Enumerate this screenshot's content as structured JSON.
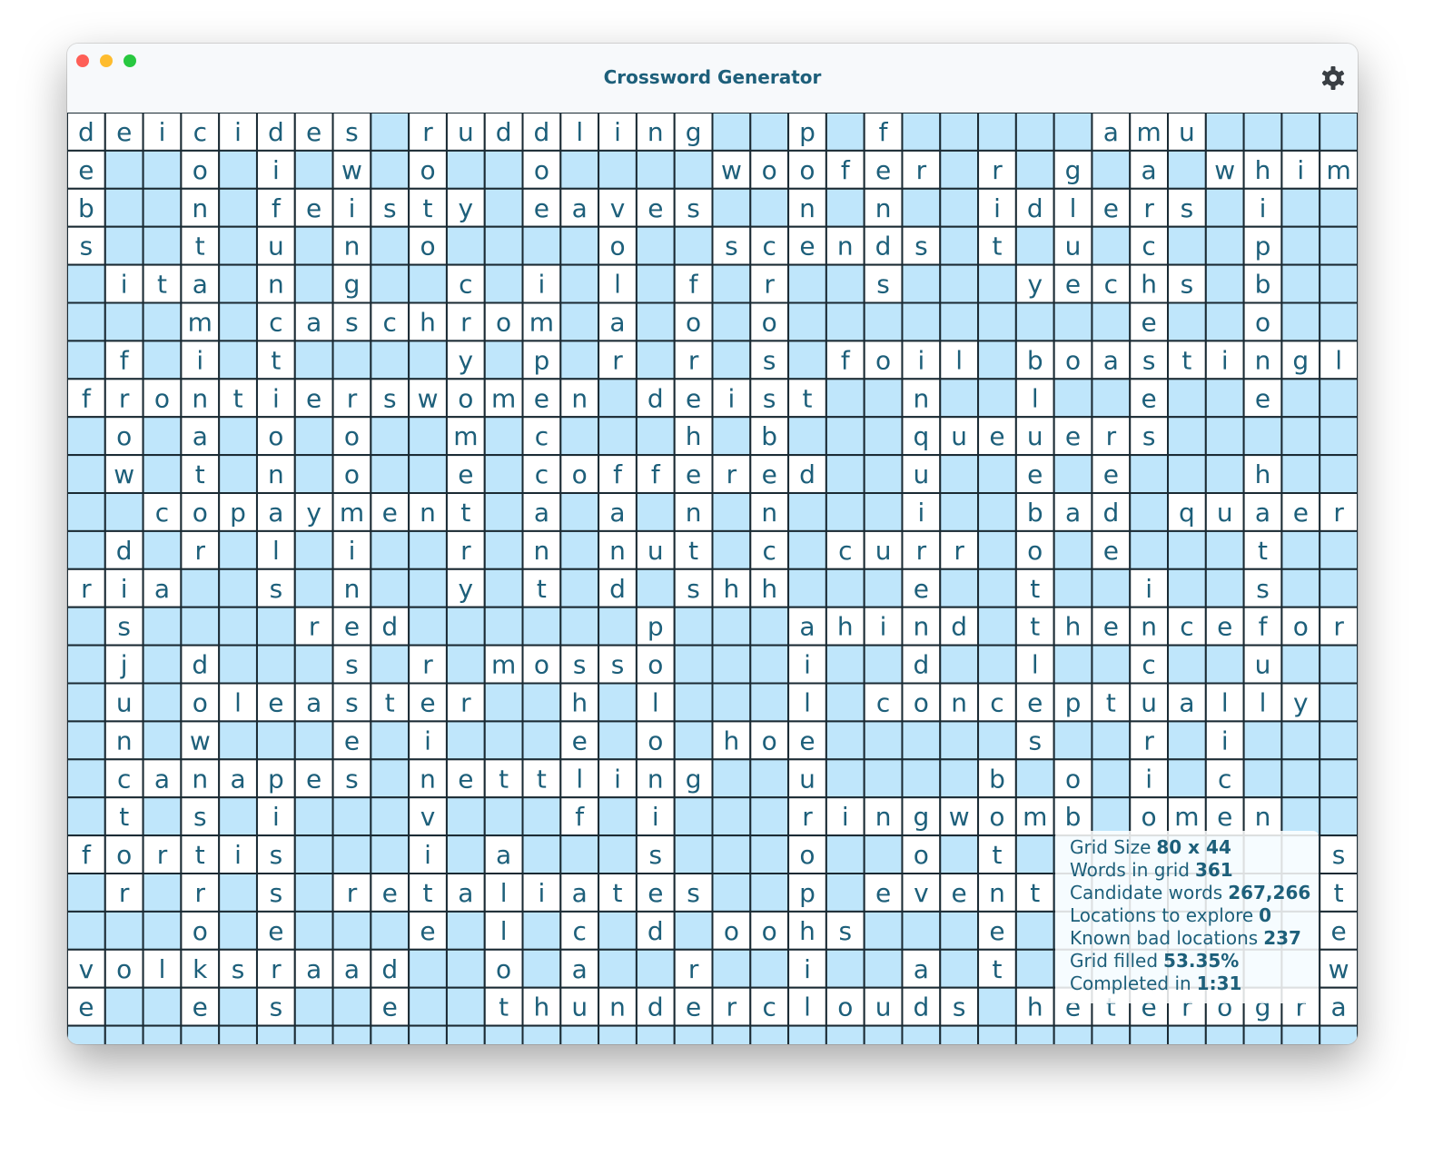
{
  "window": {
    "title": "Crossword Generator"
  },
  "grid": {
    "rows": [
      [
        "d",
        "e",
        "i",
        "c",
        "i",
        "d",
        "e",
        "s",
        null,
        "r",
        "u",
        "d",
        "d",
        "l",
        "i",
        "n",
        "g",
        null,
        null,
        "p",
        null,
        "f",
        null,
        null,
        null,
        null,
        null,
        "a",
        "m",
        "u",
        null,
        null,
        null,
        null
      ],
      [
        "e",
        null,
        null,
        "o",
        null,
        "i",
        null,
        "w",
        null,
        "o",
        null,
        null,
        "o",
        null,
        null,
        null,
        null,
        "w",
        "o",
        "o",
        "f",
        "e",
        "r",
        null,
        "r",
        null,
        "g",
        null,
        "a",
        null,
        "w",
        "h",
        "i",
        "m"
      ],
      [
        "b",
        null,
        null,
        "n",
        null,
        "f",
        "e",
        "i",
        "s",
        "t",
        "y",
        null,
        "e",
        "a",
        "v",
        "e",
        "s",
        null,
        null,
        "n",
        null,
        "n",
        null,
        null,
        "i",
        "d",
        "l",
        "e",
        "r",
        "s",
        null,
        "i",
        null,
        null
      ],
      [
        "s",
        null,
        null,
        "t",
        null,
        "u",
        null,
        "n",
        null,
        "o",
        null,
        null,
        null,
        null,
        "o",
        null,
        null,
        "s",
        "c",
        "e",
        "n",
        "d",
        "s",
        null,
        "t",
        null,
        "u",
        null,
        "c",
        null,
        null,
        "p",
        null,
        null
      ],
      [
        null,
        "i",
        "t",
        "a",
        null,
        "n",
        null,
        "g",
        null,
        null,
        "c",
        null,
        "i",
        null,
        "l",
        null,
        "f",
        null,
        "r",
        null,
        null,
        "s",
        null,
        null,
        null,
        "y",
        "e",
        "c",
        "h",
        "s",
        null,
        "b",
        null,
        null
      ],
      [
        null,
        null,
        null,
        "m",
        null,
        "c",
        "a",
        "s",
        "c",
        "h",
        "r",
        "o",
        "m",
        null,
        "a",
        null,
        "o",
        null,
        "o",
        null,
        null,
        null,
        null,
        null,
        null,
        null,
        null,
        null,
        "e",
        null,
        null,
        "o",
        null,
        null
      ],
      [
        null,
        "f",
        null,
        "i",
        null,
        "t",
        null,
        null,
        null,
        null,
        "y",
        null,
        "p",
        null,
        "r",
        null,
        "r",
        null,
        "s",
        null,
        "f",
        "o",
        "i",
        "l",
        null,
        "b",
        "o",
        "a",
        "s",
        "t",
        "i",
        "n",
        "g",
        "l"
      ],
      [
        "f",
        "r",
        "o",
        "n",
        "t",
        "i",
        "e",
        "r",
        "s",
        "w",
        "o",
        "m",
        "e",
        "n",
        null,
        "d",
        "e",
        "i",
        "s",
        "t",
        null,
        null,
        "n",
        null,
        null,
        "l",
        null,
        null,
        "e",
        null,
        null,
        "e",
        null,
        null
      ],
      [
        null,
        "o",
        null,
        "a",
        null,
        "o",
        null,
        "o",
        null,
        null,
        "m",
        null,
        "c",
        null,
        null,
        null,
        "h",
        null,
        "b",
        null,
        null,
        null,
        "q",
        "u",
        "e",
        "u",
        "e",
        "r",
        "s",
        null,
        null,
        null,
        null,
        null
      ],
      [
        null,
        "w",
        null,
        "t",
        null,
        "n",
        null,
        "o",
        null,
        null,
        "e",
        null,
        "c",
        "o",
        "f",
        "f",
        "e",
        "r",
        "e",
        "d",
        null,
        null,
        "u",
        null,
        null,
        "e",
        null,
        "e",
        null,
        null,
        null,
        "h",
        null,
        null
      ],
      [
        null,
        null,
        "c",
        "o",
        "p",
        "a",
        "y",
        "m",
        "e",
        "n",
        "t",
        null,
        "a",
        null,
        "a",
        null,
        "n",
        null,
        "n",
        null,
        null,
        null,
        "i",
        null,
        null,
        "b",
        "a",
        "d",
        null,
        "q",
        "u",
        "a",
        "e",
        "r"
      ],
      [
        null,
        "d",
        null,
        "r",
        null,
        "l",
        null,
        "i",
        null,
        null,
        "r",
        null,
        "n",
        null,
        "n",
        "u",
        "t",
        null,
        "c",
        null,
        "c",
        "u",
        "r",
        "r",
        null,
        "o",
        null,
        "e",
        null,
        null,
        null,
        "t",
        null,
        null
      ],
      [
        "r",
        "i",
        "a",
        null,
        null,
        "s",
        null,
        "n",
        null,
        null,
        "y",
        null,
        "t",
        null,
        "d",
        null,
        "s",
        "h",
        "h",
        null,
        null,
        null,
        "e",
        null,
        null,
        "t",
        null,
        null,
        "i",
        null,
        null,
        "s",
        null,
        null
      ],
      [
        null,
        "s",
        null,
        null,
        null,
        null,
        "r",
        "e",
        "d",
        null,
        null,
        null,
        null,
        null,
        null,
        "p",
        null,
        null,
        null,
        "a",
        "h",
        "i",
        "n",
        "d",
        null,
        "t",
        "h",
        "e",
        "n",
        "c",
        "e",
        "f",
        "o",
        "r"
      ],
      [
        null,
        "j",
        null,
        "d",
        null,
        null,
        null,
        "s",
        null,
        "r",
        null,
        "m",
        "o",
        "s",
        "s",
        "o",
        null,
        null,
        null,
        "i",
        null,
        null,
        "d",
        null,
        null,
        "l",
        null,
        null,
        "c",
        null,
        null,
        "u",
        null,
        null
      ],
      [
        null,
        "u",
        null,
        "o",
        "l",
        "e",
        "a",
        "s",
        "t",
        "e",
        "r",
        null,
        null,
        "h",
        null,
        "l",
        null,
        null,
        null,
        "l",
        null,
        "c",
        "o",
        "n",
        "c",
        "e",
        "p",
        "t",
        "u",
        "a",
        "l",
        "l",
        "y",
        null
      ],
      [
        null,
        "n",
        null,
        "w",
        null,
        null,
        null,
        "e",
        null,
        "i",
        null,
        null,
        null,
        "e",
        null,
        "o",
        null,
        "h",
        "o",
        "e",
        null,
        null,
        null,
        null,
        null,
        "s",
        null,
        null,
        "r",
        null,
        "i",
        null,
        null,
        null
      ],
      [
        null,
        "c",
        "a",
        "n",
        "a",
        "p",
        "e",
        "s",
        null,
        "n",
        "e",
        "t",
        "t",
        "l",
        "i",
        "n",
        "g",
        null,
        null,
        "u",
        null,
        null,
        null,
        null,
        "b",
        null,
        "o",
        null,
        "i",
        null,
        "c",
        null,
        null,
        null
      ],
      [
        null,
        "t",
        null,
        "s",
        null,
        "i",
        null,
        null,
        null,
        "v",
        null,
        null,
        null,
        "f",
        null,
        "i",
        null,
        null,
        null,
        "r",
        "i",
        "n",
        "g",
        "w",
        "o",
        "m",
        "b",
        null,
        "o",
        "m",
        "e",
        "n",
        null,
        null
      ],
      [
        "f",
        "o",
        "r",
        "t",
        "i",
        "s",
        null,
        null,
        null,
        "i",
        null,
        "a",
        null,
        null,
        null,
        "s",
        null,
        null,
        null,
        "o",
        null,
        null,
        "o",
        null,
        "t",
        null,
        null,
        null,
        null,
        null,
        null,
        null,
        null,
        "s"
      ],
      [
        null,
        "r",
        null,
        "r",
        null,
        "s",
        null,
        "r",
        "e",
        "t",
        "a",
        "l",
        "i",
        "a",
        "t",
        "e",
        "s",
        null,
        null,
        "p",
        null,
        "e",
        "v",
        "e",
        "n",
        "t",
        null,
        null,
        null,
        null,
        null,
        null,
        null,
        "t"
      ],
      [
        null,
        null,
        null,
        "o",
        null,
        "e",
        null,
        null,
        null,
        "e",
        null,
        "l",
        null,
        "c",
        null,
        "d",
        null,
        "o",
        "o",
        "h",
        "s",
        null,
        null,
        null,
        "e",
        null,
        null,
        null,
        null,
        null,
        null,
        null,
        null,
        "e"
      ],
      [
        "v",
        "o",
        "l",
        "k",
        "s",
        "r",
        "a",
        "a",
        "d",
        null,
        null,
        "o",
        null,
        "a",
        null,
        null,
        "r",
        null,
        null,
        "i",
        null,
        null,
        "a",
        null,
        "t",
        null,
        null,
        null,
        null,
        null,
        null,
        null,
        null,
        "w"
      ],
      [
        "e",
        null,
        null,
        "e",
        null,
        "s",
        null,
        null,
        "e",
        null,
        null,
        "t",
        "h",
        "u",
        "n",
        "d",
        "e",
        "r",
        "c",
        "l",
        "o",
        "u",
        "d",
        "s",
        null,
        "h",
        "e",
        "t",
        "e",
        "r",
        "o",
        "g",
        "r",
        "a"
      ]
    ]
  },
  "stats": [
    {
      "label": "Grid Size",
      "value": "80 x 44"
    },
    {
      "label": "Words in grid",
      "value": "361"
    },
    {
      "label": "Candidate words",
      "value": "267,266"
    },
    {
      "label": "Locations to explore",
      "value": "0"
    },
    {
      "label": "Known bad locations",
      "value": "237"
    },
    {
      "label": "Grid filled",
      "value": "53.35%"
    },
    {
      "label": "Completed in",
      "value": "1:31"
    }
  ]
}
